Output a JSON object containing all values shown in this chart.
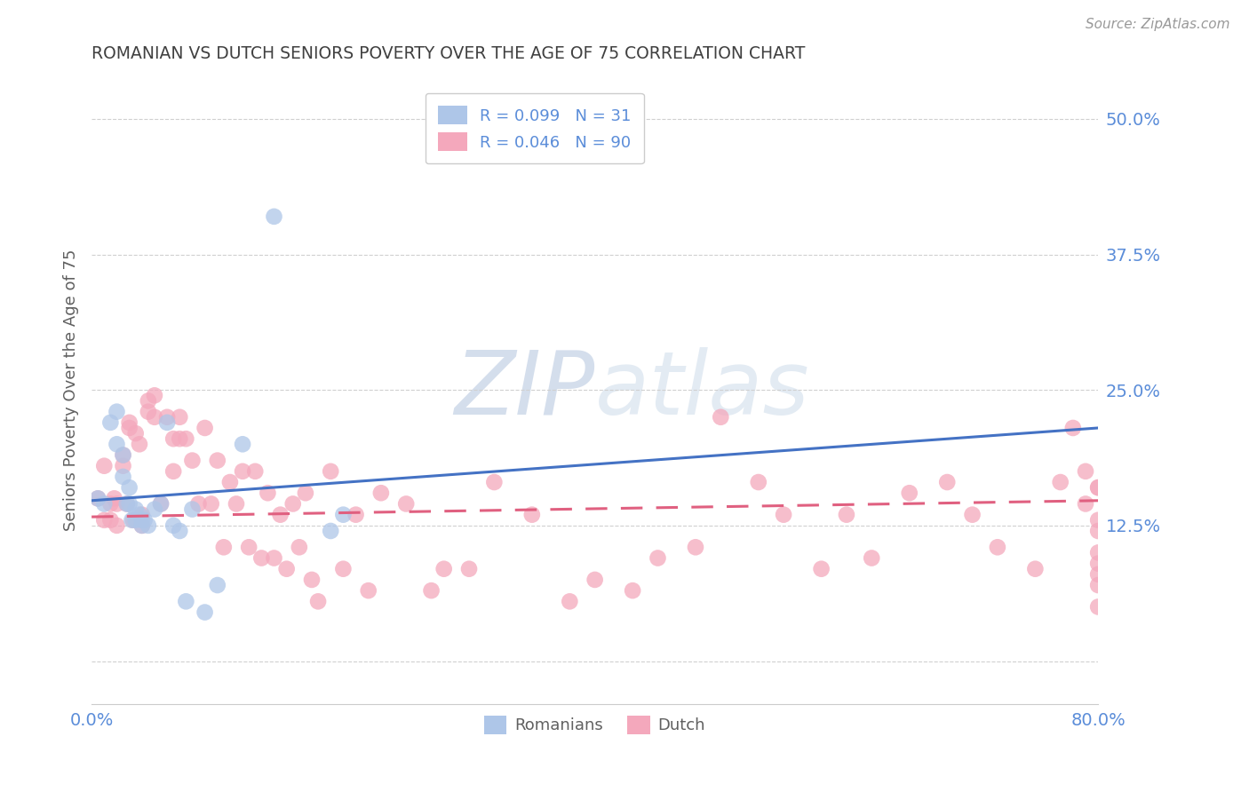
{
  "title": "ROMANIAN VS DUTCH SENIORS POVERTY OVER THE AGE OF 75 CORRELATION CHART",
  "source": "Source: ZipAtlas.com",
  "ylabel": "Seniors Poverty Over the Age of 75",
  "xlim": [
    0.0,
    0.8
  ],
  "ylim": [
    -0.04,
    0.54
  ],
  "yticks": [
    0.0,
    0.125,
    0.25,
    0.375,
    0.5
  ],
  "ytick_labels": [
    "",
    "12.5%",
    "25.0%",
    "37.5%",
    "50.0%"
  ],
  "xticks": [
    0.0,
    0.8
  ],
  "xtick_labels": [
    "0.0%",
    "80.0%"
  ],
  "romanian_R": 0.099,
  "romanian_N": 31,
  "dutch_R": 0.046,
  "dutch_N": 90,
  "romanian_color": "#aec6e8",
  "dutch_color": "#f4a8bc",
  "romanian_line_color": "#4472c4",
  "dutch_line_color": "#e06080",
  "watermark_color": "#dde5f0",
  "background_color": "#ffffff",
  "grid_color": "#d0d0d0",
  "title_color": "#404040",
  "axis_label_color": "#606060",
  "tick_label_color": "#5b8dd9",
  "ro_trend_x": [
    0.0,
    0.8
  ],
  "ro_trend_y": [
    0.148,
    0.215
  ],
  "du_trend_x": [
    0.0,
    0.8
  ],
  "du_trend_y": [
    0.133,
    0.148
  ],
  "romanian_x": [
    0.005,
    0.01,
    0.015,
    0.02,
    0.02,
    0.025,
    0.025,
    0.028,
    0.03,
    0.03,
    0.032,
    0.035,
    0.035,
    0.038,
    0.04,
    0.04,
    0.042,
    0.045,
    0.05,
    0.055,
    0.06,
    0.065,
    0.07,
    0.075,
    0.08,
    0.09,
    0.1,
    0.12,
    0.145,
    0.19,
    0.2
  ],
  "romanian_y": [
    0.15,
    0.145,
    0.22,
    0.23,
    0.2,
    0.19,
    0.17,
    0.145,
    0.16,
    0.145,
    0.13,
    0.14,
    0.13,
    0.135,
    0.13,
    0.125,
    0.13,
    0.125,
    0.14,
    0.145,
    0.22,
    0.125,
    0.12,
    0.055,
    0.14,
    0.045,
    0.07,
    0.2,
    0.41,
    0.12,
    0.135
  ],
  "dutch_x": [
    0.005,
    0.01,
    0.01,
    0.015,
    0.015,
    0.018,
    0.02,
    0.02,
    0.025,
    0.025,
    0.028,
    0.03,
    0.03,
    0.033,
    0.035,
    0.038,
    0.04,
    0.04,
    0.045,
    0.045,
    0.05,
    0.05,
    0.055,
    0.06,
    0.065,
    0.065,
    0.07,
    0.07,
    0.075,
    0.08,
    0.085,
    0.09,
    0.095,
    0.1,
    0.105,
    0.11,
    0.115,
    0.12,
    0.125,
    0.13,
    0.135,
    0.14,
    0.145,
    0.15,
    0.155,
    0.16,
    0.165,
    0.17,
    0.175,
    0.18,
    0.19,
    0.2,
    0.21,
    0.22,
    0.23,
    0.25,
    0.27,
    0.28,
    0.3,
    0.32,
    0.35,
    0.38,
    0.4,
    0.43,
    0.45,
    0.48,
    0.5,
    0.53,
    0.55,
    0.58,
    0.6,
    0.62,
    0.65,
    0.68,
    0.7,
    0.72,
    0.75,
    0.77,
    0.78,
    0.79,
    0.79,
    0.8,
    0.8,
    0.8,
    0.8,
    0.8,
    0.8,
    0.8,
    0.8,
    0.8
  ],
  "dutch_y": [
    0.15,
    0.18,
    0.13,
    0.145,
    0.13,
    0.15,
    0.145,
    0.125,
    0.19,
    0.18,
    0.145,
    0.22,
    0.215,
    0.13,
    0.21,
    0.2,
    0.135,
    0.125,
    0.23,
    0.24,
    0.245,
    0.225,
    0.145,
    0.225,
    0.205,
    0.175,
    0.225,
    0.205,
    0.205,
    0.185,
    0.145,
    0.215,
    0.145,
    0.185,
    0.105,
    0.165,
    0.145,
    0.175,
    0.105,
    0.175,
    0.095,
    0.155,
    0.095,
    0.135,
    0.085,
    0.145,
    0.105,
    0.155,
    0.075,
    0.055,
    0.175,
    0.085,
    0.135,
    0.065,
    0.155,
    0.145,
    0.065,
    0.085,
    0.085,
    0.165,
    0.135,
    0.055,
    0.075,
    0.065,
    0.095,
    0.105,
    0.225,
    0.165,
    0.135,
    0.085,
    0.135,
    0.095,
    0.155,
    0.165,
    0.135,
    0.105,
    0.085,
    0.165,
    0.215,
    0.175,
    0.145,
    0.08,
    0.1,
    0.12,
    0.16,
    0.13,
    0.09,
    0.16,
    0.05,
    0.07
  ]
}
